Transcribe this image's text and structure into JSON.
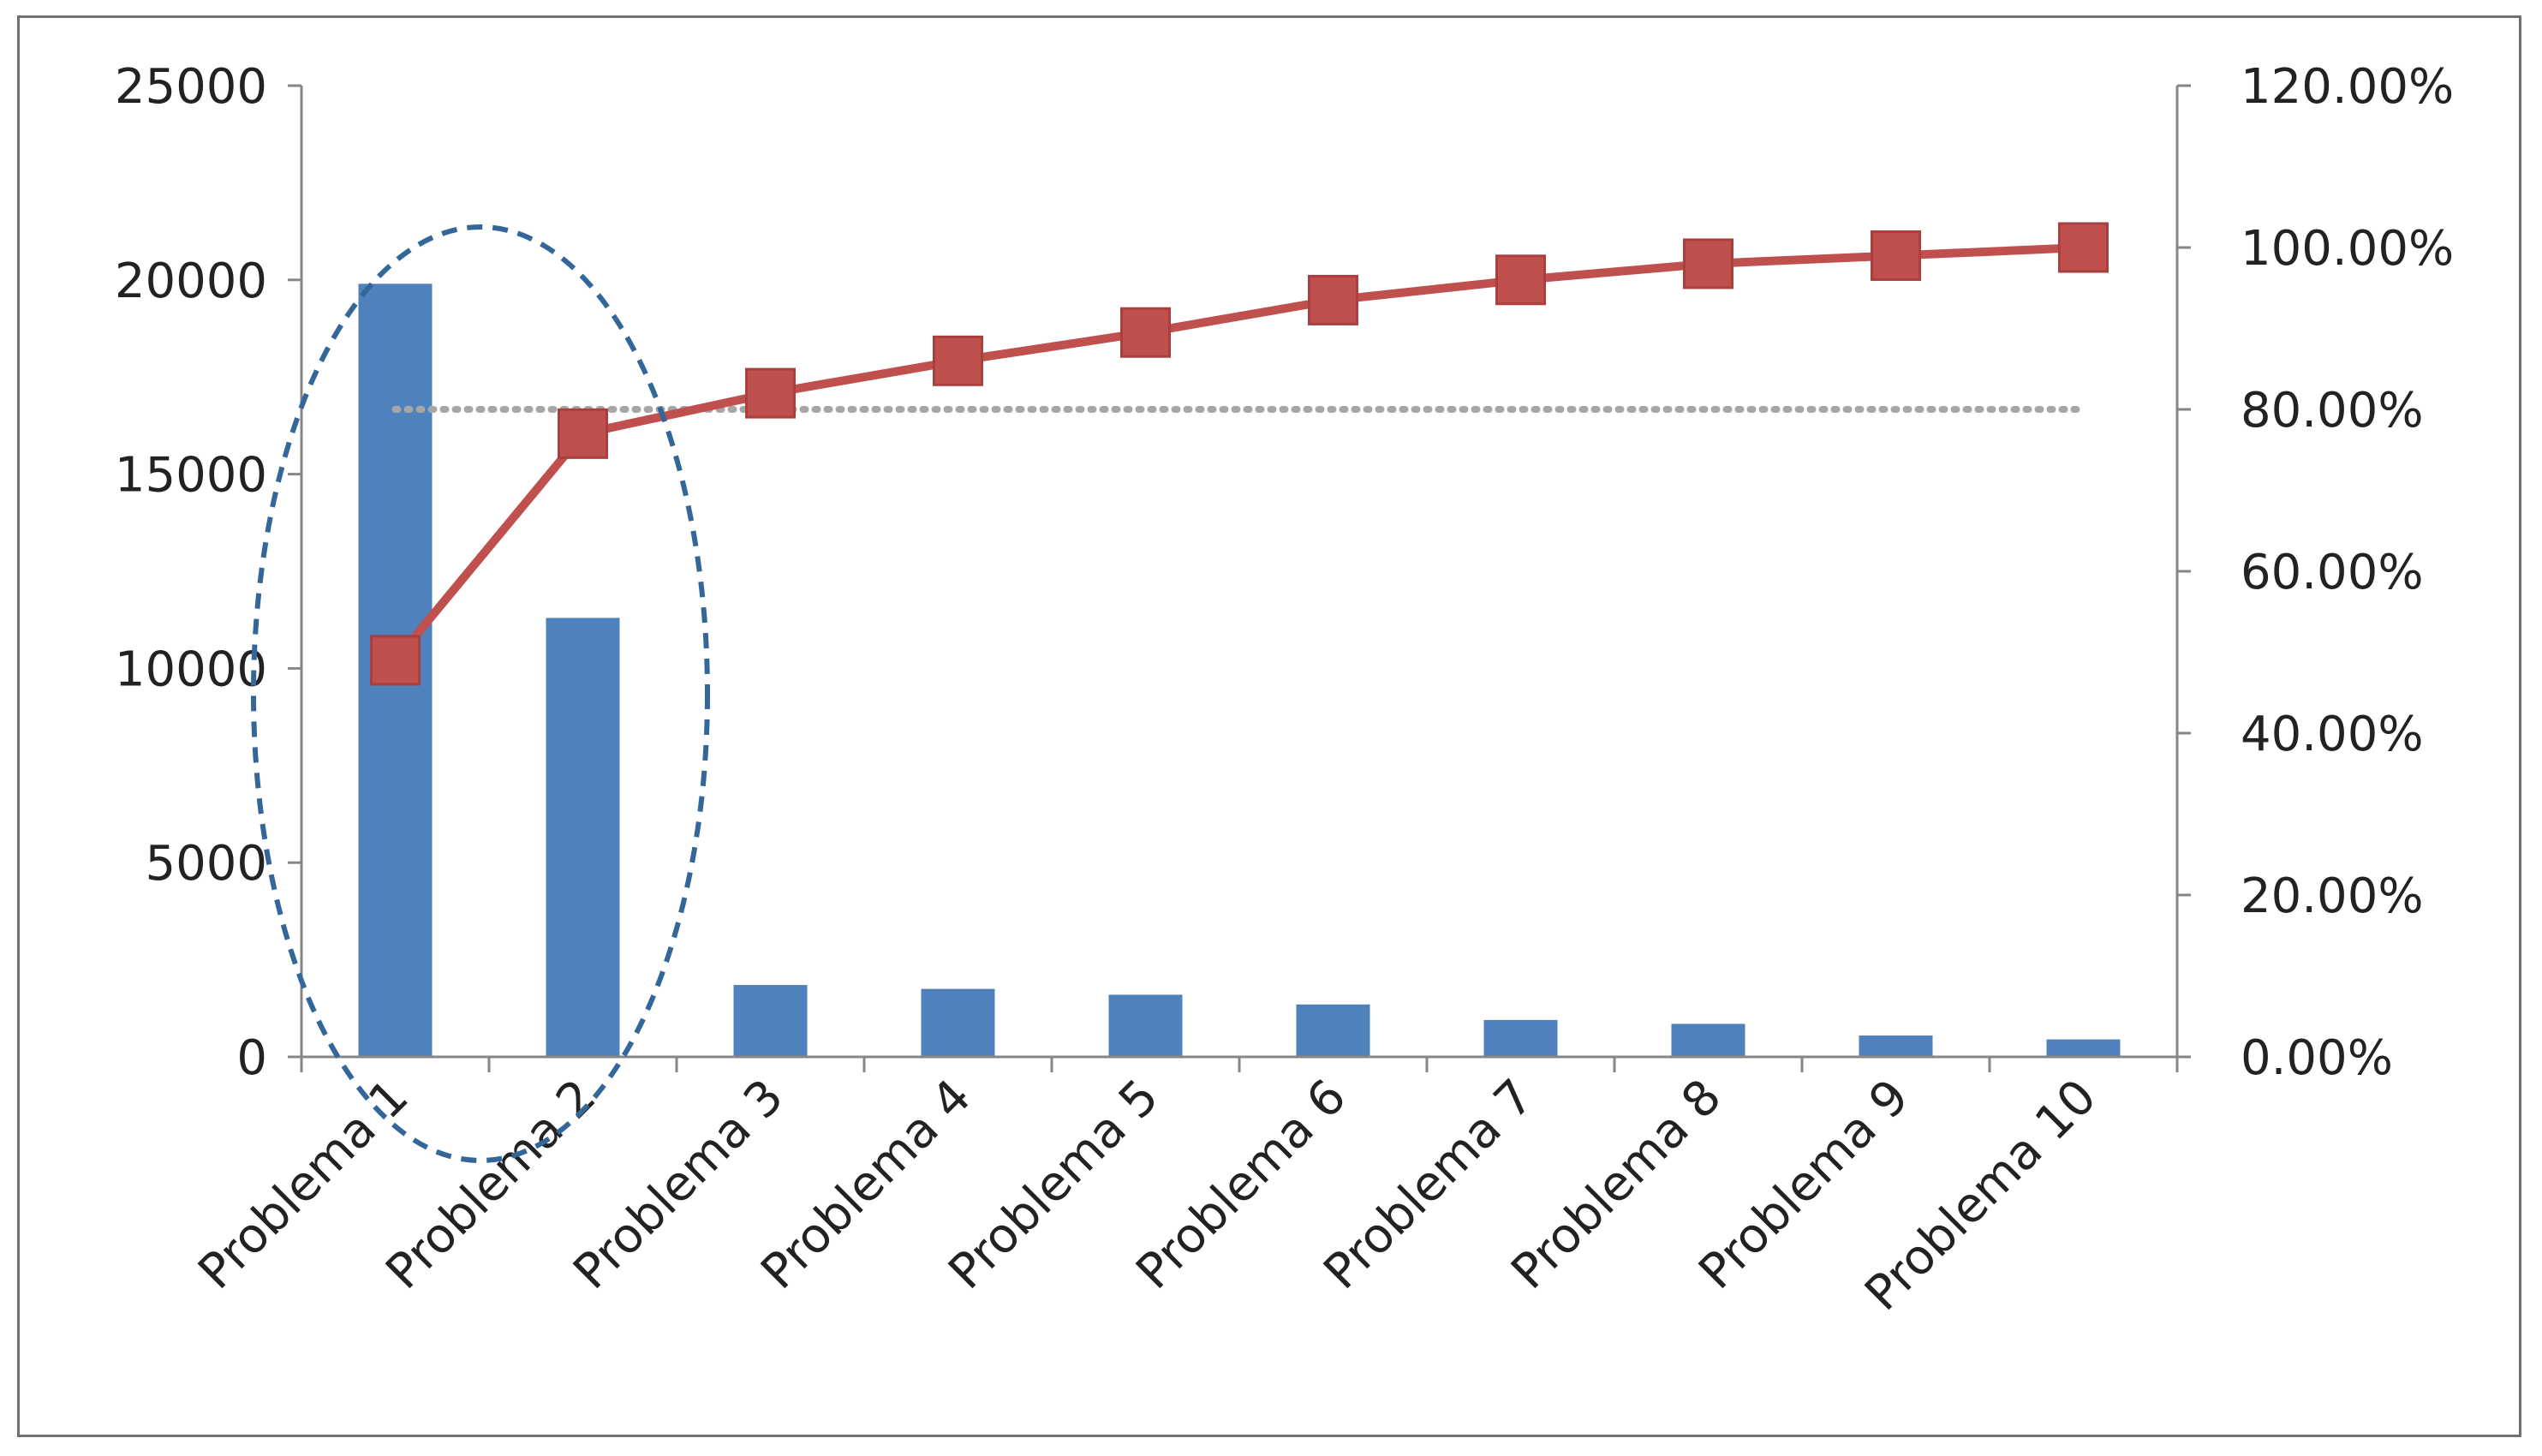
{
  "chart_data": {
    "type": "bar",
    "title": "",
    "xlabel": "",
    "ylabel": "",
    "categories": [
      "Problema 1",
      "Problema 2",
      "Problema 3",
      "Problema 4",
      "Problema 5",
      "Problema 6",
      "Problema 7",
      "Problema 8",
      "Problema 9",
      "Problema 10"
    ],
    "series": [
      {
        "type": "bar",
        "axis": "left",
        "color": "#4f81bd",
        "values": [
          19900,
          11300,
          1850,
          1750,
          1600,
          1350,
          950,
          850,
          550,
          450
        ]
      },
      {
        "type": "line",
        "axis": "right",
        "color": "#c0504d",
        "marker": "square",
        "values": [
          0.49,
          0.77,
          0.82,
          0.86,
          0.895,
          0.935,
          0.96,
          0.98,
          0.99,
          1.0
        ]
      },
      {
        "type": "reference-line",
        "axis": "right",
        "style": "dotted",
        "color": "#a6a6a6",
        "value": 0.8
      }
    ],
    "y_left": {
      "ylim": [
        0,
        25000
      ],
      "ticks": [
        "0",
        "5000",
        "10000",
        "15000",
        "20000",
        "25000"
      ]
    },
    "y_right": {
      "ylim": [
        0,
        1.2
      ],
      "ticks": [
        "0.00%",
        "20.00%",
        "40.00%",
        "60.00%",
        "80.00%",
        "100.00%",
        "120.00%"
      ]
    },
    "annotation": {
      "shape": "dashed-ellipse",
      "color": "#336699",
      "encloses": [
        "Problema 1",
        "Problema 2"
      ]
    },
    "grid": false,
    "legend": "none"
  }
}
